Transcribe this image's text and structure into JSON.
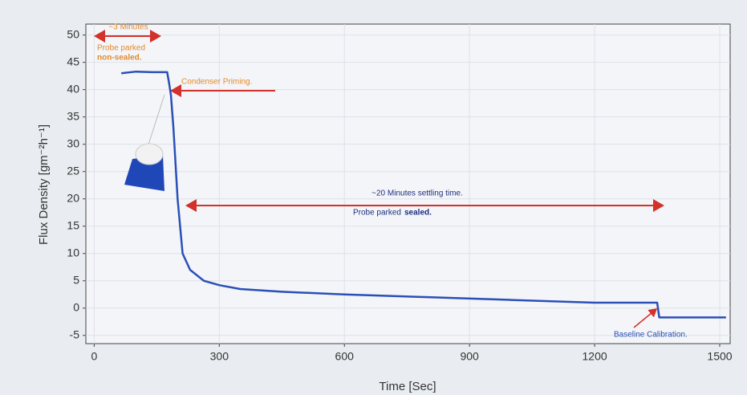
{
  "chart_data": {
    "type": "line",
    "x_label": "Time [Sec]",
    "y_label": "Flux Density [gm⁻²h⁻¹]",
    "x": [
      65,
      100,
      140,
      175,
      180,
      184,
      190,
      200,
      212,
      230,
      263,
      300,
      350,
      450,
      600,
      800,
      1000,
      1200,
      1350,
      1355,
      1400,
      1515
    ],
    "series": [
      {
        "name": "Flux Density",
        "color": "#2a4fb8",
        "values": [
          43,
          43.3,
          43.2,
          43.2,
          41,
          39,
          33,
          20,
          10,
          7,
          5,
          4.2,
          3.5,
          3,
          2.5,
          2,
          1.5,
          1,
          1,
          -1.7,
          -1.7,
          -1.7
        ]
      }
    ],
    "xlim": [
      -20,
      1525
    ],
    "ylim": [
      -6.5,
      52
    ],
    "xticks": [
      0,
      300,
      600,
      900,
      1200,
      1500
    ],
    "yticks": [
      -5,
      0,
      5,
      10,
      15,
      20,
      25,
      30,
      35,
      40,
      45,
      50
    ],
    "grid": true,
    "annotations": {
      "three_minutes": "~3 Minutes",
      "probe_parked_1": "Probe parked",
      "non_sealed": "non-sealed.",
      "condenser": "Condenser Priming.",
      "settling": "~20 Minutes settling time.",
      "probe_parked_2": "Probe parked",
      "sealed": "sealed.",
      "baseline": "Baseline Calibration."
    }
  }
}
